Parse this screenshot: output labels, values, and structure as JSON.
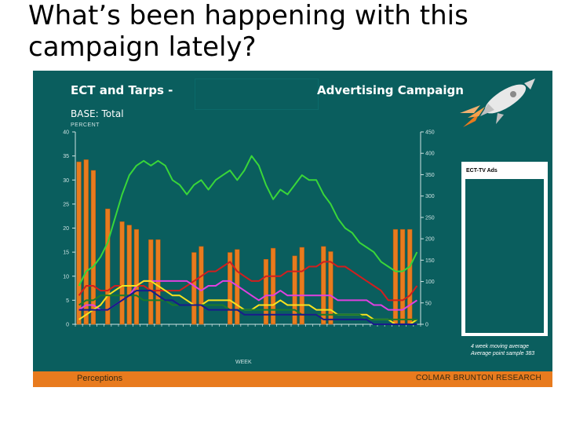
{
  "slide": {
    "title": "What’s been happening with this campaign lately?"
  },
  "panel": {
    "title_left": "ECT and Tarps -",
    "title_right": "Advertising Campaign",
    "base": "BASE: Total",
    "legend_title": "ECT-TV Ads",
    "note_line1": "4 week moving average",
    "note_line2": "Average point sample 383",
    "footer_left": "Perceptions",
    "footer_right": "COLMAR BRUNTON RESEARCH"
  },
  "colors": {
    "panel_bg": "#0a5e5e",
    "bars": "#e87b1e",
    "green": "#39d639",
    "red": "#d21e1e",
    "magenta": "#e040e0",
    "yellow": "#f7e21d",
    "dark_green": "#1b7a2a",
    "navy": "#1a1a8c"
  },
  "chart_data": {
    "type": "bar",
    "ylabel": "PERCENT",
    "xlabel": "WEEK",
    "ylim": [
      0,
      40
    ],
    "y2lim": [
      0,
      450
    ],
    "y_ticks": [
      0,
      5,
      10,
      15,
      20,
      25,
      30,
      35,
      40
    ],
    "y2_ticks": [
      0,
      50,
      100,
      150,
      200,
      250,
      300,
      350,
      400,
      450
    ],
    "weeks": 48,
    "tarp_bars": [
      {
        "week": 1,
        "value": 380
      },
      {
        "week": 2,
        "value": 385
      },
      {
        "week": 3,
        "value": 360
      },
      {
        "week": 5,
        "value": 270
      },
      {
        "week": 7,
        "value": 240
      },
      {
        "week": 8,
        "value": 232
      },
      {
        "week": 9,
        "value": 222
      },
      {
        "week": 11,
        "value": 198
      },
      {
        "week": 12,
        "value": 198
      },
      {
        "week": 17,
        "value": 168
      },
      {
        "week": 18,
        "value": 182
      },
      {
        "week": 22,
        "value": 168
      },
      {
        "week": 23,
        "value": 175
      },
      {
        "week": 27,
        "value": 152
      },
      {
        "week": 28,
        "value": 178
      },
      {
        "week": 31,
        "value": 160
      },
      {
        "week": 32,
        "value": 180
      },
      {
        "week": 35,
        "value": 182
      },
      {
        "week": 36,
        "value": 170
      },
      {
        "week": 45,
        "value": 222
      },
      {
        "week": 46,
        "value": 222
      },
      {
        "week": 47,
        "value": 222
      }
    ],
    "series": [
      {
        "color": "green",
        "values": [
          8,
          11,
          12,
          14,
          17,
          22,
          27,
          31,
          33,
          34,
          33,
          34,
          33,
          30,
          29,
          27,
          29,
          30,
          28,
          30,
          31,
          32,
          30,
          32,
          35,
          33,
          29,
          26,
          28,
          27,
          29,
          31,
          30,
          30,
          27,
          25,
          22,
          20,
          19,
          17,
          16,
          15,
          13,
          12,
          11,
          11,
          12,
          15
        ]
      },
      {
        "color": "red",
        "values": [
          6,
          8,
          8,
          7,
          7,
          8,
          8,
          8,
          8,
          8,
          7,
          7,
          7,
          7,
          7,
          8,
          9,
          10,
          11,
          11,
          12,
          13,
          11,
          10,
          9,
          9,
          10,
          10,
          10,
          11,
          11,
          11,
          12,
          12,
          13,
          13,
          12,
          12,
          11,
          10,
          9,
          8,
          7,
          5,
          5,
          5,
          6,
          8
        ]
      },
      {
        "color": "magenta",
        "values": [
          3,
          4,
          4,
          3,
          3,
          4,
          5,
          6,
          8,
          9,
          9,
          9,
          9,
          9,
          9,
          9,
          8,
          7,
          8,
          8,
          9,
          9,
          8,
          7,
          6,
          5,
          6,
          6,
          7,
          6,
          6,
          6,
          6,
          6,
          6,
          6,
          5,
          5,
          5,
          5,
          5,
          4,
          4,
          3,
          3,
          3,
          4,
          5
        ]
      },
      {
        "color": "yellow",
        "values": [
          1,
          2,
          3,
          4,
          6,
          7,
          8,
          8,
          8,
          9,
          9,
          8,
          7,
          6,
          6,
          5,
          4,
          4,
          5,
          5,
          5,
          5,
          4,
          3,
          3,
          4,
          4,
          4,
          5,
          4,
          4,
          4,
          4,
          3,
          3,
          3,
          2,
          2,
          2,
          2,
          2,
          1,
          1,
          1,
          0,
          0,
          0,
          1
        ]
      },
      {
        "color": "dark_green",
        "values": [
          4,
          5,
          5,
          6,
          6,
          6,
          6,
          6,
          6,
          5,
          5,
          5,
          5,
          4,
          4,
          4,
          4,
          4,
          4,
          4,
          4,
          3,
          3,
          3,
          3,
          3,
          3,
          3,
          3,
          3,
          3,
          2,
          2,
          2,
          2,
          2,
          2,
          2,
          2,
          2,
          1,
          1,
          1,
          1,
          1,
          1,
          1,
          1
        ]
      },
      {
        "color": "navy",
        "values": [
          3,
          3,
          3,
          3,
          3,
          4,
          5,
          6,
          7,
          7,
          7,
          6,
          5,
          5,
          4,
          4,
          4,
          4,
          3,
          3,
          3,
          3,
          3,
          2,
          2,
          2,
          2,
          2,
          2,
          2,
          2,
          2,
          2,
          2,
          1,
          1,
          1,
          1,
          1,
          1,
          1,
          0,
          0,
          0,
          0,
          0,
          0,
          0
        ]
      }
    ]
  }
}
